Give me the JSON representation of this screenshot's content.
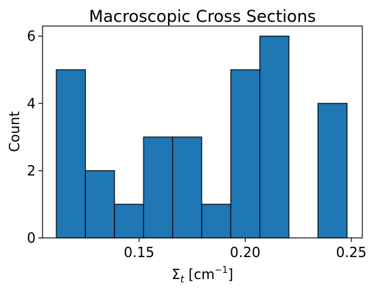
{
  "chart_data": {
    "type": "bar",
    "title": "Macroscopic Cross Sections",
    "xlabel": "Σt [cm⁻¹]",
    "ylabel": "Count",
    "xlim": [
      0.1045,
      0.2552
    ],
    "ylim": [
      0,
      6.3
    ],
    "bin_edges": [
      0.111,
      0.1247,
      0.1384,
      0.1521,
      0.1658,
      0.1795,
      0.1932,
      0.2069,
      0.2206,
      0.2343,
      0.248
    ],
    "counts": [
      5,
      2,
      1,
      3,
      3,
      1,
      5,
      6,
      0,
      4
    ],
    "x_ticks": [
      0.15,
      0.2,
      0.25
    ],
    "x_tick_labels": [
      "0.15",
      "0.20",
      "0.25"
    ],
    "y_ticks": [
      0,
      2,
      4,
      6
    ],
    "y_tick_labels": [
      "0",
      "2",
      "4",
      "6"
    ],
    "grid": false,
    "legend": "none",
    "bar_color": "#1f77b4",
    "edge_color": "#000000"
  }
}
